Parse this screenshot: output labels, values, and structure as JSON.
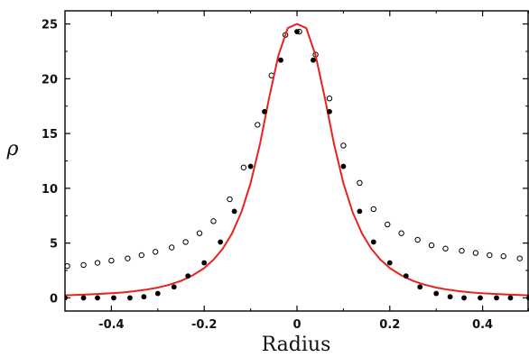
{
  "chart_data": {
    "type": "scatter",
    "title": "",
    "xlabel": "Radius",
    "ylabel": "ρ",
    "xlim": [
      -0.5,
      0.5
    ],
    "ylim": [
      -1.2,
      26.2
    ],
    "xticks": [
      -0.4,
      -0.2,
      0,
      0.2,
      0.4
    ],
    "xtick_labels": [
      "-0.4",
      "-0.2",
      "0",
      "0.2",
      "0.4"
    ],
    "yticks": [
      0,
      5,
      10,
      15,
      20,
      25
    ],
    "ytick_labels": [
      "0",
      "5",
      "10",
      "15",
      "20",
      "25"
    ],
    "grid": false,
    "legend": "none",
    "colors": {
      "curve": "#e8231e",
      "filled": "#000000",
      "open_edge": "#000000",
      "open_fill": "#ffffff",
      "axes": "#000000"
    },
    "series": [
      {
        "kind": "curve",
        "x": [
          -0.5,
          -0.475,
          -0.45,
          -0.425,
          -0.4,
          -0.375,
          -0.35,
          -0.325,
          -0.3,
          -0.275,
          -0.25,
          -0.225,
          -0.2,
          -0.18,
          -0.16,
          -0.14,
          -0.12,
          -0.1,
          -0.08,
          -0.06,
          -0.04,
          -0.02,
          0,
          0.02,
          0.04,
          0.06,
          0.08,
          0.1,
          0.12,
          0.14,
          0.16,
          0.18,
          0.2,
          0.225,
          0.25,
          0.275,
          0.3,
          0.325,
          0.35,
          0.375,
          0.4,
          0.425,
          0.45,
          0.475,
          0.5
        ],
        "y": [
          0.23,
          0.27,
          0.31,
          0.36,
          0.42,
          0.5,
          0.61,
          0.75,
          0.94,
          1.2,
          1.55,
          2.05,
          2.72,
          3.48,
          4.49,
          5.88,
          7.81,
          10.47,
          14.0,
          18.26,
          22.14,
          24.62,
          25.0,
          24.62,
          22.14,
          18.26,
          14.0,
          10.47,
          7.81,
          5.88,
          4.49,
          3.48,
          2.72,
          2.05,
          1.55,
          1.2,
          0.94,
          0.75,
          0.61,
          0.5,
          0.42,
          0.36,
          0.31,
          0.27,
          0.23
        ]
      },
      {
        "kind": "filled",
        "x": [
          -0.5,
          -0.46,
          -0.43,
          -0.395,
          -0.36,
          -0.33,
          -0.3,
          -0.265,
          -0.235,
          -0.2,
          -0.165,
          -0.135,
          -0.1,
          -0.07,
          -0.035,
          0,
          0.035,
          0.07,
          0.1,
          0.135,
          0.165,
          0.2,
          0.235,
          0.265,
          0.3,
          0.33,
          0.36,
          0.395,
          0.43,
          0.46,
          0.5
        ],
        "y": [
          0.0,
          0.0,
          0.0,
          0.0,
          0.0,
          0.1,
          0.4,
          1.0,
          2.0,
          3.2,
          5.1,
          7.9,
          12.0,
          17.0,
          21.7,
          24.3,
          21.7,
          17.0,
          12.0,
          7.9,
          5.1,
          3.2,
          2.0,
          1.0,
          0.4,
          0.1,
          0.0,
          0.0,
          0.0,
          0.0,
          0.0
        ]
      },
      {
        "kind": "open",
        "x": [
          -0.495,
          -0.46,
          -0.43,
          -0.4,
          -0.365,
          -0.335,
          -0.305,
          -0.27,
          -0.24,
          -0.21,
          -0.18,
          -0.145,
          -0.115,
          -0.085,
          -0.055,
          -0.025,
          0.005,
          0.04,
          0.07,
          0.1,
          0.135,
          0.165,
          0.195,
          0.225,
          0.26,
          0.29,
          0.32,
          0.355,
          0.385,
          0.415,
          0.445,
          0.48
        ],
        "y": [
          2.9,
          3.0,
          3.2,
          3.4,
          3.6,
          3.9,
          4.2,
          4.6,
          5.1,
          5.9,
          7.0,
          9.0,
          11.9,
          15.8,
          20.3,
          24.0,
          24.3,
          22.2,
          18.2,
          13.9,
          10.5,
          8.1,
          6.7,
          5.9,
          5.3,
          4.8,
          4.5,
          4.3,
          4.1,
          3.9,
          3.8,
          3.6
        ]
      }
    ]
  }
}
